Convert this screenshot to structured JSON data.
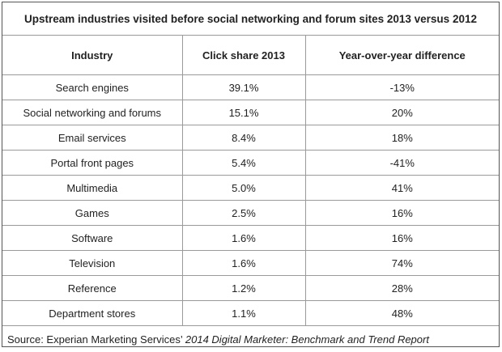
{
  "title": "Upstream industries visited before social networking and forum sites 2013 versus 2012",
  "headers": [
    "Industry",
    "Click share 2013",
    "Year-over-year difference"
  ],
  "rows": [
    [
      "Search engines",
      "39.1%",
      "-13%"
    ],
    [
      "Social networking and forums",
      "15.1%",
      "20%"
    ],
    [
      "Email services",
      "8.4%",
      "18%"
    ],
    [
      "Portal front pages",
      "5.4%",
      "-41%"
    ],
    [
      "Multimedia",
      "5.0%",
      "41%"
    ],
    [
      "Games",
      "2.5%",
      "16%"
    ],
    [
      "Software",
      "1.6%",
      "16%"
    ],
    [
      "Television",
      "1.6%",
      "74%"
    ],
    [
      "Reference",
      "1.2%",
      "28%"
    ],
    [
      "Department stores",
      "1.1%",
      "48%"
    ]
  ],
  "source": {
    "prefix": "Source: Experian Marketing Services’ ",
    "report": "2014 Digital Marketer: Benchmark and Trend Report"
  }
}
